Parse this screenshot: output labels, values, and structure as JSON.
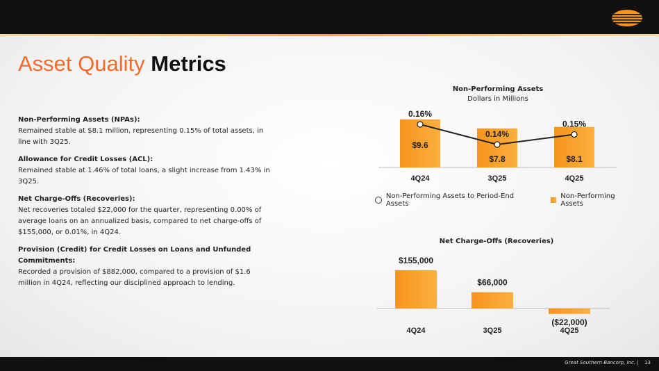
{
  "header": {
    "title_part1": "Asset Quality",
    "title_part2": "Metrics"
  },
  "items": [
    {
      "heading": "Non-Performing Assets (NPAs):",
      "text": "Remained stable at $8.1 million, representing 0.15% of total assets, in line with 3Q25."
    },
    {
      "heading": "Allowance for Credit Losses (ACL):",
      "text": "Remained stable at 1.46% of total loans, a slight increase from 1.43% in 3Q25."
    },
    {
      "heading": "Net Charge-Offs (Recoveries):",
      "text": "Net recoveries totaled $22,000 for the quarter, representing 0.00% of average loans on an annualized basis, compared to net charge-offs of $155,000, or 0.01%, in 4Q24."
    },
    {
      "heading": "Provision (Credit) for Credit Losses on Loans and Unfunded Commitments:",
      "text": "Recorded a provision of $882,000, compared to a provision of $1.6 million in 4Q24, reflecting our disciplined approach to lending."
    }
  ],
  "footer": {
    "company": "Great Southern Bancorp, Inc.",
    "separator": "|",
    "page": "13"
  },
  "colors": {
    "accent": "#f26b2a",
    "bar_light": "#fbb040",
    "bar_dark": "#f7941d",
    "dark": "#111111"
  },
  "chart_data": [
    {
      "type": "bar",
      "title": "Non-Performing Assets",
      "subtitle": "Dollars in Millions",
      "categories": [
        "4Q24",
        "3Q25",
        "4Q25"
      ],
      "series": [
        {
          "name": "Non-Performing Assets",
          "kind": "bar",
          "values": [
            9.6,
            7.8,
            8.1
          ],
          "labels": [
            "$9.6",
            "$7.8",
            "$8.1"
          ]
        },
        {
          "name": "Non-Performing Assets to Period-End Assets",
          "kind": "line",
          "values": [
            0.16,
            0.14,
            0.15
          ],
          "labels": [
            "0.16%",
            "0.14%",
            "0.15%"
          ]
        }
      ],
      "legend": [
        "Non-Performing Assets to Period-End Assets",
        "Non-Performing Assets"
      ]
    },
    {
      "type": "bar",
      "title": "Net Charge-Offs (Recoveries)",
      "categories": [
        "4Q24",
        "3Q25",
        "4Q25"
      ],
      "values": [
        155000,
        66000,
        -22000
      ],
      "labels": [
        "$155,000",
        "$66,000",
        "($22,000)"
      ]
    }
  ]
}
